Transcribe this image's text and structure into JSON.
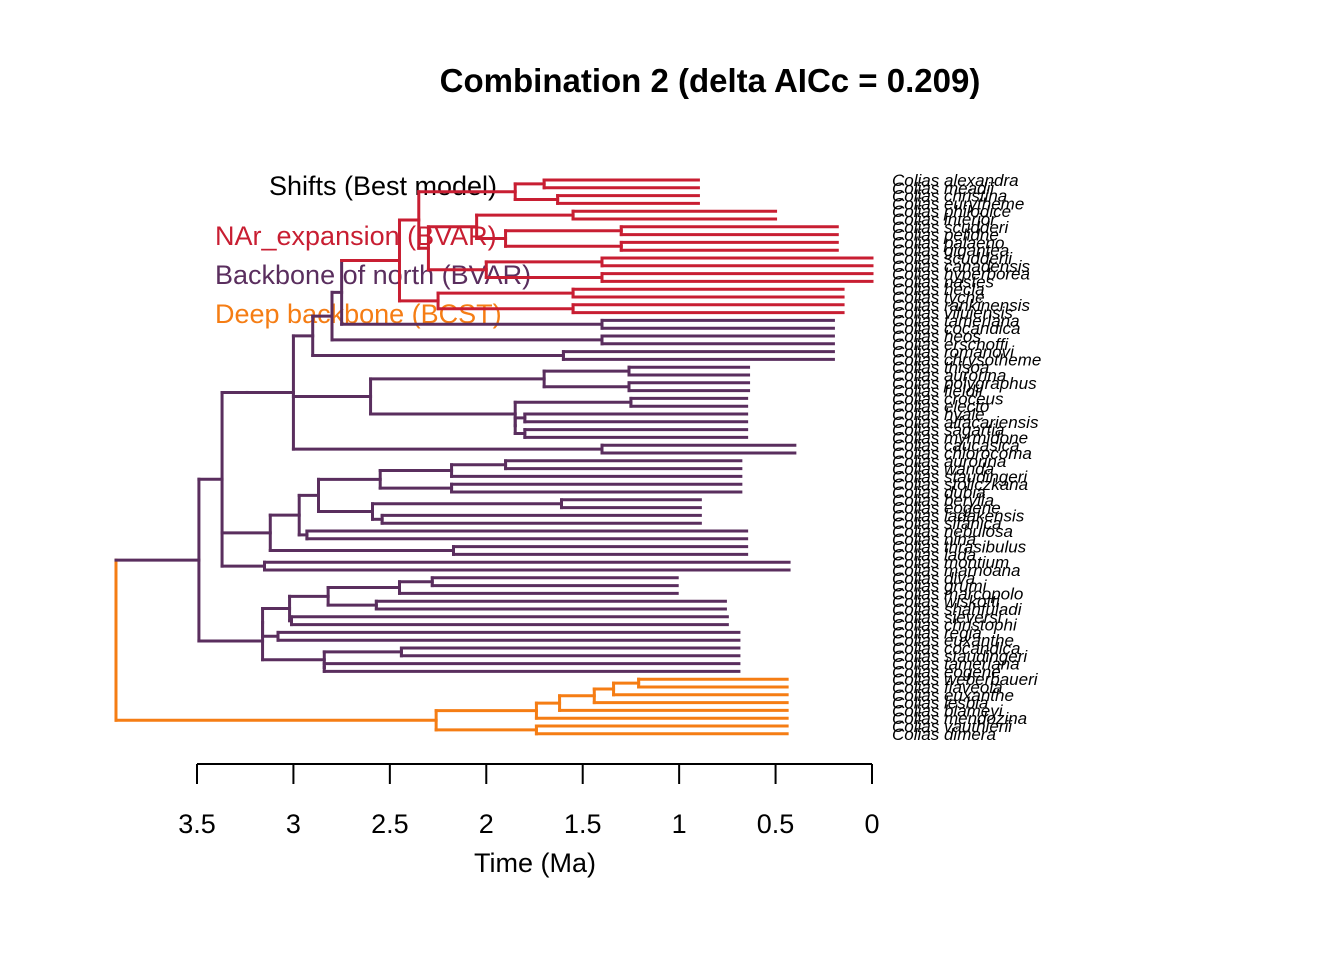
{
  "chart_data": {
    "type": "phylogram",
    "title": "Combination 2 (delta AICc = 0.209)",
    "xlabel": "Time (Ma)",
    "x_axis": {
      "reversed": true,
      "range": [
        3.5,
        0
      ],
      "ticks": [
        "3.5",
        "3",
        "2.5",
        "2",
        "1.5",
        "1",
        "0.5",
        "0"
      ]
    },
    "legend": {
      "title": "Shifts (Best model)",
      "position": "top-left",
      "entries": [
        {
          "label": "NAr_expansion (BVAR)",
          "color": "#C81E32",
          "group": "nar"
        },
        {
          "label": "Backbone of north (BVAR)",
          "color": "#5A2E5E",
          "group": "backbone"
        },
        {
          "label": "Deep backbone (BCST)",
          "color": "#F57D14",
          "group": "deep"
        }
      ]
    },
    "tips": [
      "Colias alexandra",
      "Colias meadii",
      "Colias christina",
      "Colias eurytheme",
      "Colias philodice",
      "Colias interior",
      "Colias scudderi",
      "Colias pelidne",
      "Colias palaeno",
      "Colias gigantea",
      "Colias scudderii",
      "Colias canadensis",
      "Colias hyperborea",
      "Colias nastes",
      "Colias hecla",
      "Colias tyche",
      "Colias rankinensis",
      "Colias viluiensis",
      "Colias tamerlana",
      "Colias cocandica",
      "Colias heos",
      "Colias erschoffi",
      "Colias romanovi",
      "Colias chrysotheme",
      "Colias thisoa",
      "Colias aurorina",
      "Colias polygraphus",
      "Colias fieldii",
      "Colias croceus",
      "Colias electo",
      "Colias hyale",
      "Colias alfacariensis",
      "Colias sagartia",
      "Colias myrmidone",
      "Colias caucasica",
      "Colias chlorocoma",
      "Colias aurorina",
      "Colias wanda",
      "Colias staudingeri",
      "Colias stoliczkana",
      "Colias dubia",
      "Colias berylla",
      "Colias eogene",
      "Colias ladakensis",
      "Colias sifanica",
      "Colias nebulosa",
      "Colias nina",
      "Colias thrasibulus",
      "Colias lada",
      "Colias montium",
      "Colias marnoana",
      "Colias diva",
      "Colias grumi",
      "Colias marcopolo",
      "Colias wiskotti",
      "Colias shahfuladi",
      "Colias sieversi",
      "Colias christophi",
      "Colias regia",
      "Colias euxanthe",
      "Colias cocandica",
      "Colias staudingeri",
      "Colias tamerlana",
      "Colias eogene",
      "Colias weberbaueri",
      "Colias flaveola",
      "Colias euxanthe",
      "Colias lesbia",
      "Colias blameyi",
      "Colias mendozina",
      "Colias vauthierii",
      "Colias dimera"
    ],
    "tree": "((((((((((((alexandra:0.8,meadii:0.8):0.15,(christina:0.73,eurytheme:0.73):0.22):0.5,(((philodice:1.05,interior:1.05):0.5,((scudderi:1.12,pelidne:1.12):0.6,(palaeno:1.12,gigantea:1.12):0.6):0.15):0.25,((scudderii:1.4,canadensis:1.4):0.6,(hyperborea:1.4,nastes:1.4):0.6):0.3):0.05):0.1,((hecla:1.4,tyche:1.4):0.7,(rankinensis:1.4,viluiensis:1.4):0.7):0.2):0.3,(tamerlana:1.2,cocandica:1.2):1.35):0.05,(heos:1.2,erschoffi:1.2):1.4):0.1,(romanovi:1.4,chrysotheme:1.4):1.3):0.1,(((thisoa:0.62,aurorina:0.62):0.44,(polygraphus:0.62,fieldii:0.62):0.44):0.9,((croceus:0.6,electo:0.6):0.6,((hyale:1.15,alfacariensis:1.15):0.05,(sagartia:1.15,myrmidone:1.15):0.05):0.0):0.75):0.4,(caucasica:1.0,chlorocoma:1.0):1.6):0.24):0.13,((((((aurorina2:1.22,wanda:1.22):0.28,staudingeri:1.5):0.37,(stoliczkana:1.5,dubia:1.5):0.37):0.32,((berylla:0.72,eogene:0.72):0.98,(ladakensis:1.65,sifanica:1.65):0.05):0.28):0.1,(nebulosa:2.28,nina:2.28):0.04):0.15,(thrasibulus:1.52,lada:1.52):0.95):0.25,(montium:2.72,marnoana:2.72):0.22):0.12,((((((diva:1.27,grumi:1.27):0.17,marcopolo:1.44):0.37,(wiskotti:1.81,shahfuladi:1.81):0.25):0.2,(sieversi:2.26,christophi:2.26):0.01):0.14,(regia:2.39,euxanthe2:2.39):0.08):0.0,((cocandica2:1.75,staudingeri2:1.75):0.4,(tamerlana2:2.15,eogene2:2.15):0.0):0.32):0.33):0.43,((((((weberbaueri:0.77,flaveola:0.77):0.13,euxanthe:0.9):0.1,lesbia:1.0):0.18,blameyi:1.18):0.12,mendozina:1.3):0.52,(vauthierii:1.3,dimera:1.3):0.52):1.66):0.02;"
  }
}
